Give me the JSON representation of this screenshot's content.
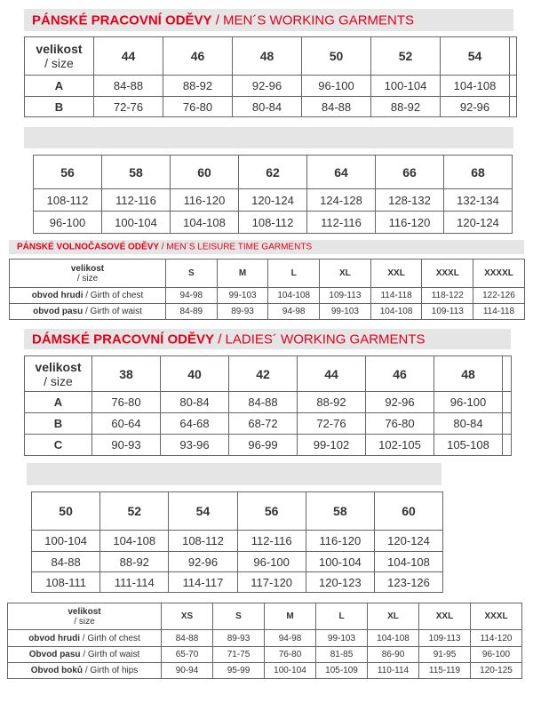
{
  "accent_color": "#e3001b",
  "sections": [
    {
      "id": "mens-working",
      "title_bold": "PÁNSKÉ PRACOVNÍ ODĚVY",
      "title_rest": " / MEN´S WORKING GARMENTS",
      "corner": {
        "bold": "velikost",
        "rest": "/ size"
      },
      "sizes": [
        "44",
        "46",
        "48",
        "50",
        "52",
        "54",
        ""
      ],
      "rows": [
        {
          "label": "A",
          "values": [
            "84-88",
            "88-92",
            "92-96",
            "96-100",
            "100-104",
            "104-108",
            ""
          ]
        },
        {
          "label": "B",
          "values": [
            "72-76",
            "76-80",
            "80-84",
            "84-88",
            "88-92",
            "92-96",
            ""
          ]
        }
      ]
    },
    {
      "id": "mens-working-cont",
      "title_bold": "",
      "title_rest": "",
      "sizes": [
        "56",
        "58",
        "60",
        "62",
        "64",
        "66",
        "68"
      ],
      "rows": [
        {
          "values": [
            "108-112",
            "112-116",
            "116-120",
            "120-124",
            "124-128",
            "128-132",
            "132-134"
          ]
        },
        {
          "values": [
            "96-100",
            "100-104",
            "104-108",
            "108-112",
            "112-116",
            "116-120",
            "120-124"
          ]
        }
      ]
    },
    {
      "id": "mens-leisure",
      "title_bold": "PÁNSKÉ VOLNOČASOVÉ ODĚVY",
      "title_rest": " / MEN´S LEISURE TIME GARMENTS",
      "corner": {
        "bold": "velikost",
        "rest": "/ size"
      },
      "sizes": [
        "S",
        "M",
        "L",
        "XL",
        "XXL",
        "XXXL",
        "XXXXL"
      ],
      "rows": [
        {
          "label_bold": "obvod hrudi ",
          "label_rest": " / Girth of chest",
          "values": [
            "94-98",
            "99-103",
            "104-108",
            "109-113",
            "114-118",
            "118-122",
            "122-126"
          ]
        },
        {
          "label_bold": "obvod pasu",
          "label_rest": " / Girth of waist",
          "values": [
            "84-89",
            "89-93",
            "94-98",
            "99-103",
            "104-108",
            "109-113",
            "114-118"
          ]
        }
      ]
    },
    {
      "id": "ladies-working",
      "title_bold": "DÁMSKÉ PRACOVNÍ ODĚVY",
      "title_rest": " / LADIES´ WORKING GARMENTS",
      "corner": {
        "bold": "velikost",
        "rest": "/ size"
      },
      "sizes": [
        "38",
        "40",
        "42",
        "44",
        "46",
        "48",
        ""
      ],
      "rows": [
        {
          "label": "A",
          "values": [
            "76-80",
            "80-84",
            "84-88",
            "88-92",
            "92-96",
            "96-100",
            ""
          ]
        },
        {
          "label": "B",
          "values": [
            "60-64",
            "64-68",
            "68-72",
            "72-76",
            "76-80",
            "80-84",
            ""
          ]
        },
        {
          "label": "C",
          "values": [
            "90-93",
            "93-96",
            "96-99",
            "99-102",
            "102-105",
            "105-108",
            ""
          ]
        }
      ]
    },
    {
      "id": "ladies-working-cont",
      "title_bold": "",
      "title_rest": "",
      "sizes": [
        "50",
        "52",
        "54",
        "56",
        "58",
        "60"
      ],
      "rows": [
        {
          "values": [
            "100-104",
            "104-108",
            "108-112",
            "112-116",
            "116-120",
            "120-124"
          ]
        },
        {
          "values": [
            "84-88",
            "88-92",
            "92-96",
            "96-100",
            "100-104",
            "104-108"
          ]
        },
        {
          "values": [
            "108-111",
            "111-114",
            "114-117",
            "117-120",
            "120-123",
            "123-126"
          ]
        }
      ]
    },
    {
      "id": "ladies-leisure",
      "title_bold": "",
      "title_rest": "",
      "corner": {
        "bold": "velikost",
        "rest": "/ size"
      },
      "sizes": [
        "XS",
        "S",
        "M",
        "L",
        "XL",
        "XXL",
        "XXXL"
      ],
      "rows": [
        {
          "label_bold": "obvod hrudi",
          "label_rest": " / Girth of chest",
          "values": [
            "84-88",
            "89-93",
            "94-98",
            "99-103",
            "104-108",
            "109-113",
            "114-120"
          ]
        },
        {
          "label_bold": "Obvod pasu",
          "label_rest": " / Girth of waist",
          "values": [
            "65-70",
            "71-75",
            "76-80",
            "81-85",
            "86-90",
            "91-95",
            "96-100"
          ]
        },
        {
          "label_bold": "Obvod boků",
          "label_rest": " / Girth of hips",
          "values": [
            "90-94",
            "95-99",
            "100-104",
            "105-109",
            "110-114",
            "115-119",
            "120-125"
          ]
        }
      ]
    }
  ]
}
